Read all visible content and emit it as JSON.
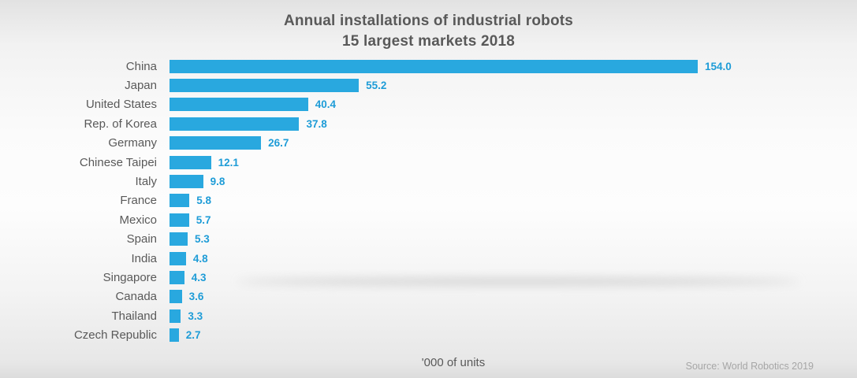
{
  "title": {
    "line1": "Annual installations of industrial robots",
    "line2": "15 largest markets 2018"
  },
  "footer": {
    "axis_label": "'000 of units",
    "source": "Source: World Robotics 2019"
  },
  "colors": {
    "bar": "#29a8df",
    "value_label": "#1e9cd7",
    "title_text": "#595959",
    "source_text": "#a6a6a6"
  },
  "chart_data": {
    "type": "bar",
    "orientation": "horizontal",
    "title": "Annual installations of industrial robots — 15 largest markets 2018",
    "xlabel": "'000 of units",
    "ylabel": "",
    "xlim": [
      0,
      160
    ],
    "grid": false,
    "legend": false,
    "categories": [
      "China",
      "Japan",
      "United States",
      "Rep. of Korea",
      "Germany",
      "Chinese Taipei",
      "Italy",
      "France",
      "Mexico",
      "Spain",
      "India",
      "Singapore",
      "Canada",
      "Thailand",
      "Czech Republic"
    ],
    "values": [
      154.0,
      55.2,
      40.4,
      37.8,
      26.7,
      12.1,
      9.8,
      5.8,
      5.7,
      5.3,
      4.8,
      4.3,
      3.6,
      3.3,
      2.7
    ],
    "value_labels": [
      "154.0",
      "55.2",
      "40.4",
      "37.8",
      "26.7",
      "12.1",
      "9.8",
      "5.8",
      "5.7",
      "5.3",
      "4.8",
      "4.3",
      "3.6",
      "3.3",
      "2.7"
    ],
    "source": "Source: World Robotics 2019"
  }
}
